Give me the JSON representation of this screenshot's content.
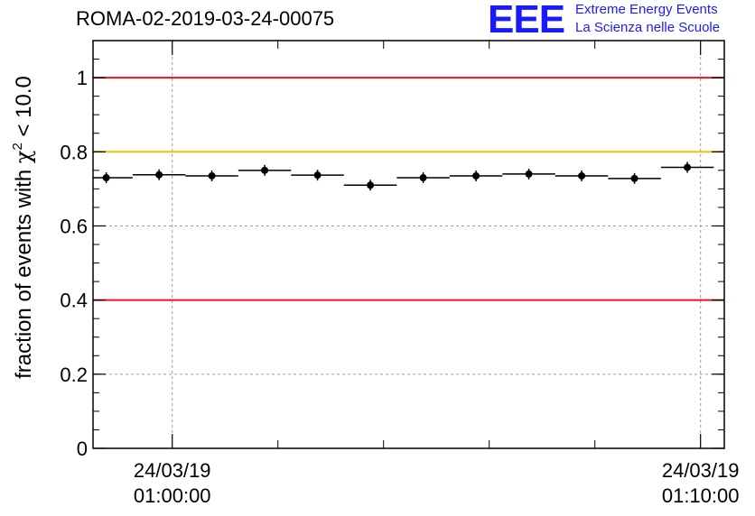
{
  "header": {
    "run_id": "ROMA-02-2019-03-24-00075",
    "logo_mark": "EEE",
    "logo_line1": "Extreme Energy Events",
    "logo_line2": "La Scienza nelle Scuole"
  },
  "chart_data": {
    "type": "scatter",
    "title": "ROMA-02-2019-03-24-00075",
    "ylabel": "fraction of events with χ² < 10.0",
    "ylabel_parts": {
      "prefix": "fraction of events with ",
      "symbol": "χ",
      "superscript": "2",
      "suffix": " < 10.0"
    },
    "xlabel": "",
    "ylim": [
      0,
      1.1
    ],
    "xlim_minutes": [
      -1.5,
      10.45
    ],
    "yticks": [
      0,
      0.2,
      0.4,
      0.6,
      0.8,
      1
    ],
    "ytick_labels": [
      "0",
      "0.2",
      "0.4",
      "0.6",
      "0.8",
      "1"
    ],
    "xticks_major": [
      {
        "minute": 0,
        "date": "24/03/19",
        "time": "01:00:00"
      },
      {
        "minute": 10,
        "date": "24/03/19",
        "time": "01:10:00"
      }
    ],
    "xticks_minor_minutes": [
      2,
      4,
      6,
      8
    ],
    "grid": true,
    "reference_lines": [
      {
        "y": 1.0,
        "color": "#e8141c"
      },
      {
        "y": 0.8,
        "color": "#f5c000"
      },
      {
        "y": 0.4,
        "color": "#e8141c"
      }
    ],
    "points": [
      {
        "x": -1.25,
        "y": 0.73
      },
      {
        "x": -0.25,
        "y": 0.738
      },
      {
        "x": 0.75,
        "y": 0.735
      },
      {
        "x": 1.75,
        "y": 0.75
      },
      {
        "x": 2.75,
        "y": 0.737
      },
      {
        "x": 3.75,
        "y": 0.71
      },
      {
        "x": 4.75,
        "y": 0.73
      },
      {
        "x": 5.75,
        "y": 0.735
      },
      {
        "x": 6.75,
        "y": 0.74
      },
      {
        "x": 7.75,
        "y": 0.735
      },
      {
        "x": 8.75,
        "y": 0.728
      },
      {
        "x": 9.75,
        "y": 0.758
      }
    ],
    "bin_width_minutes": 1.0,
    "colors": {
      "points": "#000000",
      "grid": "#9a9a9a"
    }
  }
}
